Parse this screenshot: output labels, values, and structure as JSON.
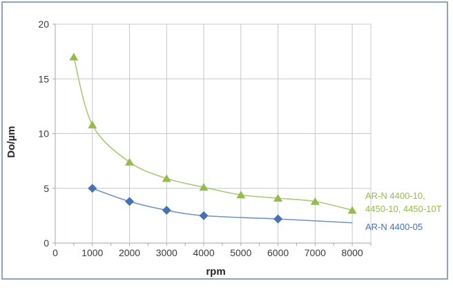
{
  "figure": {
    "background": "#FFFFFF",
    "border_color": "#8CA3BA"
  },
  "chart_data": {
    "type": "line",
    "title": "",
    "xlabel": "rpm",
    "ylabel": "Do/µm",
    "xlim": [
      0,
      8500
    ],
    "ylim": [
      0,
      20
    ],
    "x_major_ticks": [
      0,
      1000,
      2000,
      3000,
      4000,
      5000,
      6000,
      7000,
      8000
    ],
    "x_minor_tick_step": 500,
    "y_ticks": [
      0,
      5,
      10,
      15,
      20
    ],
    "grid": true,
    "legend_position": "right",
    "colors": {
      "gridline": "#C4C8CC",
      "axis": "#9FA6AD",
      "tick_label": "#3A3A3A",
      "axis_title": "#262626"
    },
    "series": [
      {
        "name": "AR-N 4400-10, 4450-10, 4450-10T",
        "legend_lines": [
          "AR-N 4400-10,",
          "4450-10, 4450-10T"
        ],
        "color": "#94BB4B",
        "line_color": "#A9C878",
        "marker": "triangle",
        "x": [
          500,
          1000,
          2000,
          3000,
          4000,
          5000,
          6000,
          7000,
          8000
        ],
        "y": [
          17.0,
          10.8,
          7.4,
          5.9,
          5.1,
          4.4,
          4.1,
          3.8,
          3.0
        ]
      },
      {
        "name": "AR-N 4400-05",
        "legend_lines": [
          "AR-N 4400-05"
        ],
        "color": "#4472B4",
        "line_color": "#7190C4",
        "marker": "diamond",
        "x": [
          1000,
          2000,
          3000,
          4000,
          6000,
          8000
        ],
        "y": [
          5.0,
          3.8,
          3.0,
          2.5,
          2.2,
          1.85
        ],
        "marker_at": [
          true,
          true,
          true,
          true,
          true,
          false
        ]
      }
    ]
  }
}
